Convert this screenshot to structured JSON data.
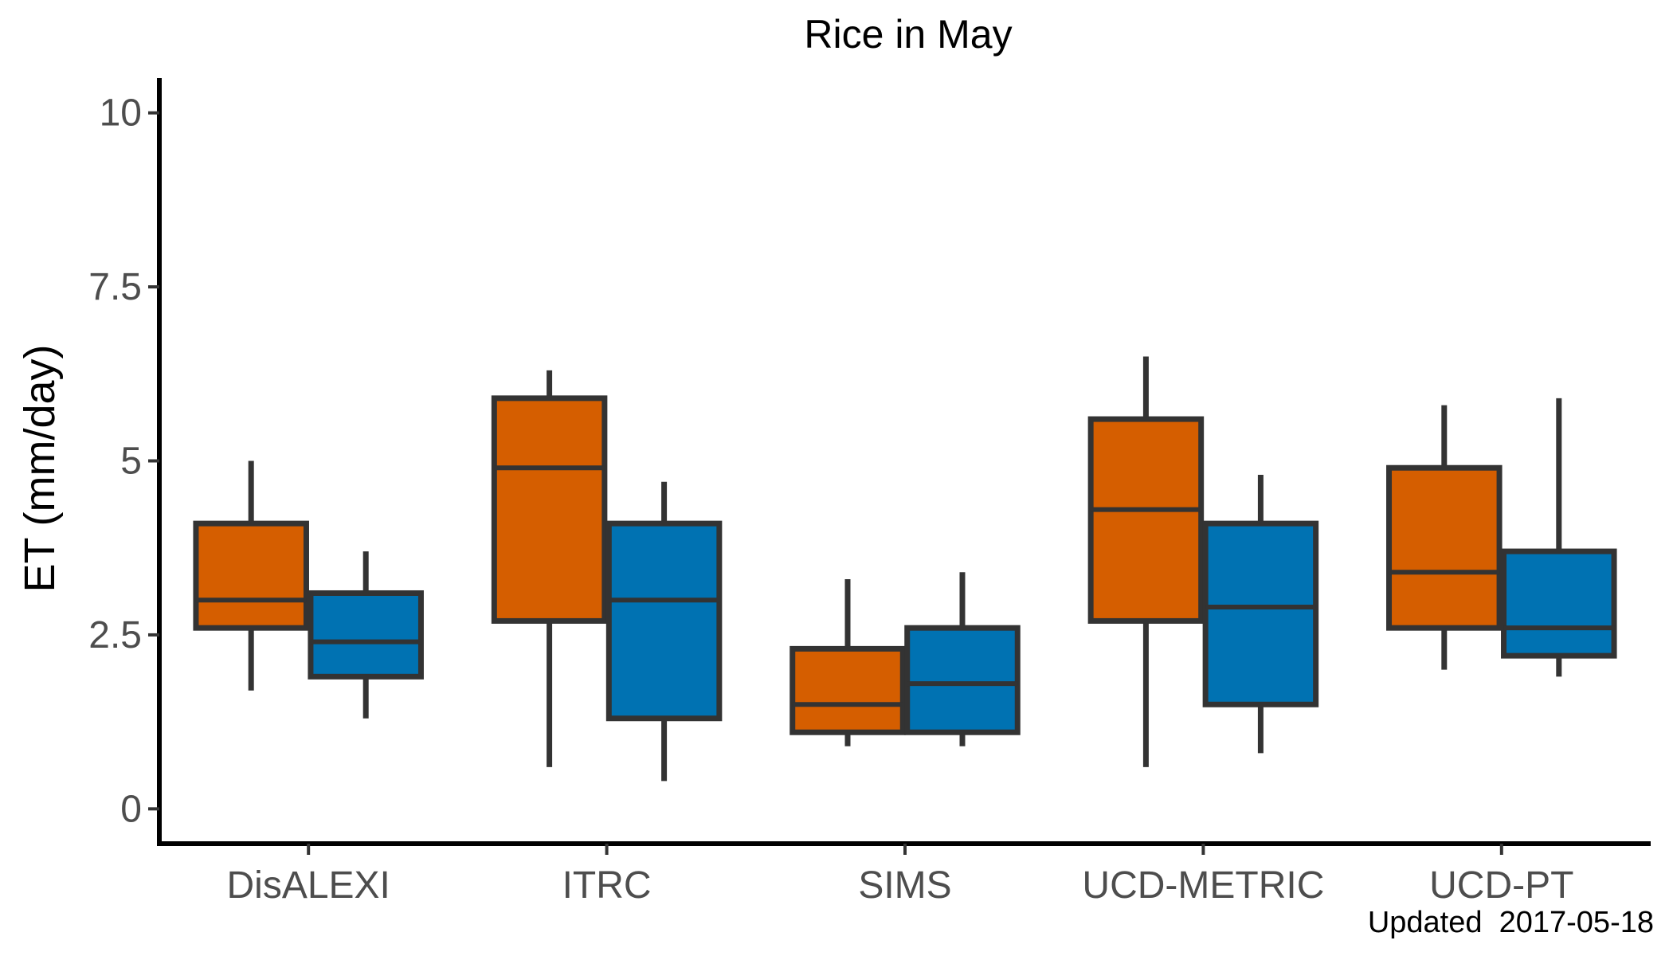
{
  "chart_data": {
    "type": "box",
    "title": "Rice in May",
    "ylabel": "ET (mm/day)",
    "xlabel": "",
    "ylim": [
      -0.5,
      10.5
    ],
    "yticks": [
      "0",
      "2.5",
      "5",
      "7.5",
      "10"
    ],
    "ytick_values": [
      0,
      2.5,
      5,
      7.5,
      10
    ],
    "grid": false,
    "legend": "none",
    "categories": [
      "DisALEXI",
      "ITRC",
      "SIMS",
      "UCD-METRIC",
      "UCD-PT"
    ],
    "colors": [
      "#D55E00",
      "#0072B2"
    ],
    "outline_color": "#333333",
    "series": [
      {
        "color": "#D55E00",
        "boxes": [
          {
            "min": 1.7,
            "q1": 2.6,
            "median": 3.0,
            "q3": 4.1,
            "max": 5.0
          },
          {
            "min": 0.6,
            "q1": 2.7,
            "median": 4.9,
            "q3": 5.9,
            "max": 6.3
          },
          {
            "min": 0.9,
            "q1": 1.1,
            "median": 1.5,
            "q3": 2.3,
            "max": 3.3
          },
          {
            "min": 0.6,
            "q1": 2.7,
            "median": 4.3,
            "q3": 5.6,
            "max": 6.5
          },
          {
            "min": 2.0,
            "q1": 2.6,
            "median": 3.4,
            "q3": 4.9,
            "max": 5.8
          }
        ]
      },
      {
        "color": "#0072B2",
        "boxes": [
          {
            "min": 1.3,
            "q1": 1.9,
            "median": 2.4,
            "q3": 3.1,
            "max": 3.7
          },
          {
            "min": 0.4,
            "q1": 1.3,
            "median": 3.0,
            "q3": 4.1,
            "max": 4.7
          },
          {
            "min": 0.9,
            "q1": 1.1,
            "median": 1.8,
            "q3": 2.6,
            "max": 3.4
          },
          {
            "min": 0.8,
            "q1": 1.5,
            "median": 2.9,
            "q3": 4.1,
            "max": 4.8
          },
          {
            "min": 1.9,
            "q1": 2.2,
            "median": 2.6,
            "q3": 3.7,
            "max": 5.9
          }
        ]
      }
    ],
    "caption": "Updated  2017-05-18"
  }
}
